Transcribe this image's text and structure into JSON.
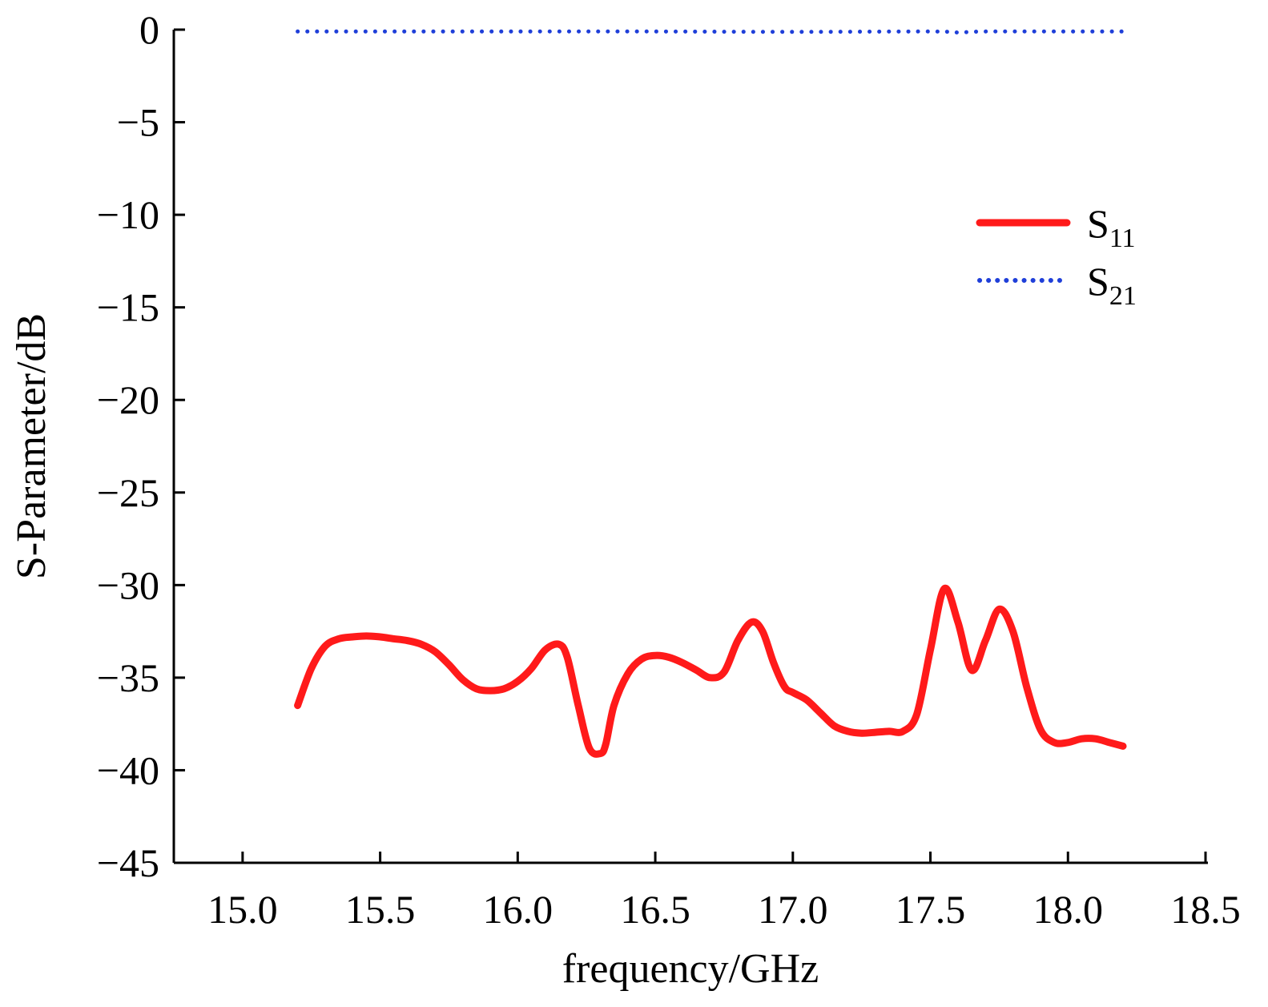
{
  "chart_data": {
    "type": "line",
    "title": "",
    "xlabel": "frequency/GHz",
    "ylabel": "S-Parameter/dB",
    "xlim": [
      14.75,
      18.5
    ],
    "ylim": [
      -45,
      0
    ],
    "xticks": [
      "15.0",
      "15.5",
      "16.0",
      "16.5",
      "17.0",
      "17.5",
      "18.0",
      "18.5"
    ],
    "xtick_values": [
      15.0,
      15.5,
      16.0,
      16.5,
      17.0,
      17.5,
      18.0,
      18.5
    ],
    "yticks": [
      "0",
      "−5",
      "−10",
      "−15",
      "−20",
      "−25",
      "−30",
      "−35",
      "−40",
      "−45"
    ],
    "ytick_values": [
      0,
      -5,
      -10,
      -15,
      -20,
      -25,
      -30,
      -35,
      -40,
      -45
    ],
    "grid": false,
    "legend_position": "top-right",
    "series": [
      {
        "name": "S",
        "subscript": "11",
        "color": "#ff1a1a",
        "style": "solid",
        "x": [
          15.2,
          15.25,
          15.3,
          15.35,
          15.4,
          15.45,
          15.5,
          15.55,
          15.6,
          15.65,
          15.7,
          15.75,
          15.8,
          15.85,
          15.9,
          15.95,
          16.0,
          16.05,
          16.1,
          16.15,
          16.18,
          16.22,
          16.26,
          16.3,
          16.32,
          16.35,
          16.4,
          16.45,
          16.5,
          16.55,
          16.6,
          16.65,
          16.7,
          16.75,
          16.8,
          16.85,
          16.89,
          16.93,
          16.97,
          17.0,
          17.05,
          17.1,
          17.15,
          17.2,
          17.25,
          17.3,
          17.35,
          17.4,
          17.45,
          17.5,
          17.55,
          17.6,
          17.65,
          17.7,
          17.75,
          17.8,
          17.85,
          17.9,
          17.95,
          18.0,
          18.05,
          18.1,
          18.15,
          18.2
        ],
        "y": [
          -36.5,
          -34.5,
          -33.3,
          -32.9,
          -32.8,
          -32.75,
          -32.8,
          -32.9,
          -33.0,
          -33.2,
          -33.6,
          -34.3,
          -35.1,
          -35.6,
          -35.7,
          -35.6,
          -35.2,
          -34.5,
          -33.5,
          -33.2,
          -33.9,
          -36.5,
          -38.8,
          -39.1,
          -38.6,
          -36.5,
          -34.8,
          -34.0,
          -33.8,
          -33.9,
          -34.2,
          -34.6,
          -35.0,
          -34.7,
          -33.0,
          -32.0,
          -32.5,
          -34.2,
          -35.5,
          -35.8,
          -36.2,
          -36.9,
          -37.6,
          -37.9,
          -38.0,
          -37.95,
          -37.9,
          -37.9,
          -37.0,
          -33.5,
          -30.2,
          -32.0,
          -34.6,
          -33.0,
          -31.3,
          -32.5,
          -35.5,
          -37.8,
          -38.5,
          -38.5,
          -38.3,
          -38.3,
          -38.5,
          -38.7
        ]
      },
      {
        "name": "S",
        "subscript": "21",
        "color": "#1f3fd9",
        "style": "dotted",
        "x": [
          15.2,
          15.5,
          16.0,
          16.5,
          17.0,
          17.5,
          17.6,
          17.7,
          18.0,
          18.2
        ],
        "y": [
          -0.1,
          -0.1,
          -0.1,
          -0.1,
          -0.12,
          -0.1,
          -0.15,
          -0.1,
          -0.1,
          -0.1
        ]
      }
    ]
  }
}
